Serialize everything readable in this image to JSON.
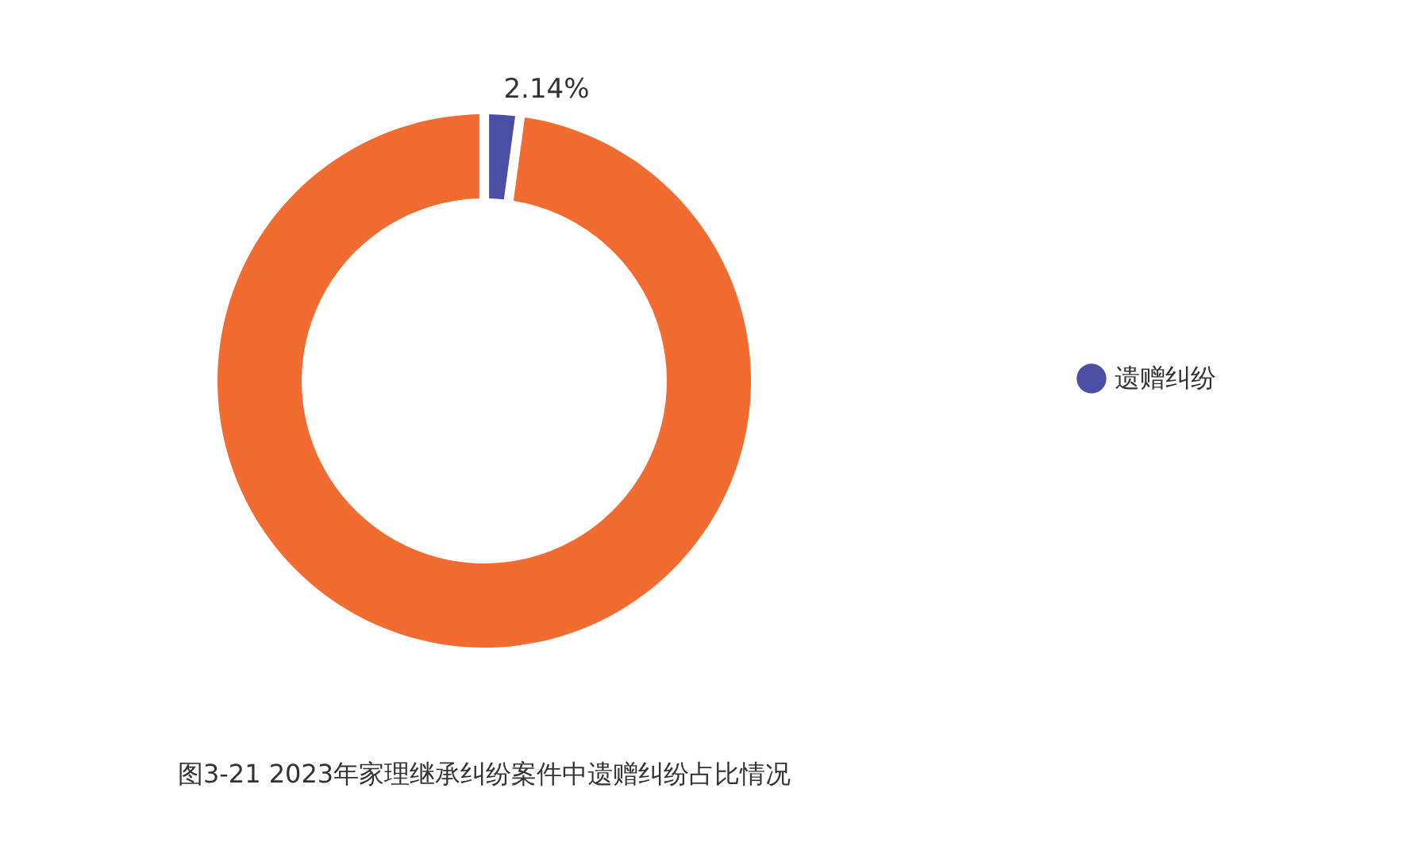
{
  "chart_data": {
    "type": "donut",
    "title": "图3-21  2023年家理继承纠纷案件中遗赠纠纷占比情况",
    "categories": [
      "遗赠纠纷",
      null
    ],
    "values": [
      2.14,
      97.86
    ],
    "colors": [
      "#4a4fa3",
      "#f26b30"
    ],
    "value_labels": [
      "2.14%",
      null
    ],
    "legend": "right"
  }
}
